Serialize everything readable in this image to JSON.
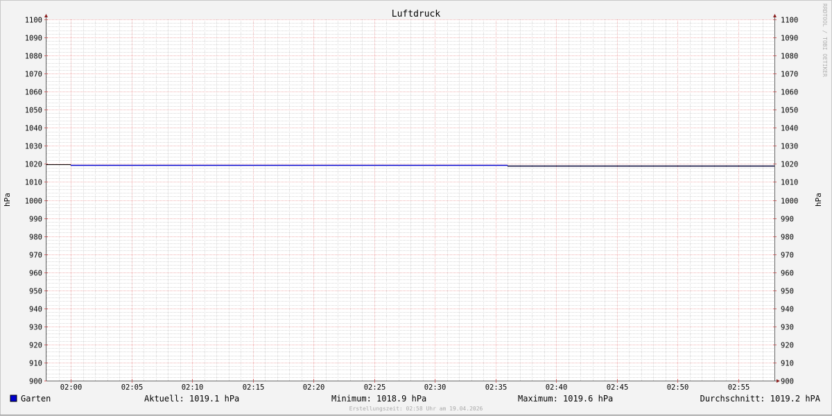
{
  "chart_data": {
    "type": "line",
    "title": "Luftdruck",
    "ylabel": "hPa",
    "ylabel_right": "hPa",
    "ylim": [
      900,
      1100
    ],
    "y_ticks": [
      900,
      910,
      920,
      930,
      940,
      950,
      960,
      970,
      980,
      990,
      1000,
      1010,
      1020,
      1030,
      1040,
      1050,
      1060,
      1070,
      1080,
      1090,
      1100
    ],
    "xlim": [
      "01:58",
      "02:58"
    ],
    "x_ticks": [
      "02:00",
      "02:05",
      "02:10",
      "02:15",
      "02:20",
      "02:25",
      "02:30",
      "02:35",
      "02:40",
      "02:45",
      "02:50",
      "02:55"
    ],
    "grid": true,
    "series": [
      {
        "name": "Garten",
        "color": "#0000cc",
        "points": [
          [
            "01:58",
            1019.6
          ],
          [
            "02:00",
            1019.2
          ],
          [
            "02:36",
            1019.1
          ],
          [
            "02:58",
            1019.1
          ]
        ],
        "segment_colors": [
          "#000000",
          "#0000cc",
          "#000033"
        ]
      }
    ],
    "legend": {
      "position": "bottom-left",
      "label": "Garten",
      "color": "#0000cc"
    },
    "stats": {
      "current": "Aktuell: 1019.1 hPa",
      "minimum": "Minimum: 1018.9 hPa",
      "maximum": "Maximum: 1019.6 hPa",
      "average": "Durchschnitt: 1019.2 hPA"
    },
    "footer": "Erstellungszeit: 02:58 Uhr am 19.04.2026",
    "watermark": "RRDTOOL / TOBI OETIKER"
  }
}
